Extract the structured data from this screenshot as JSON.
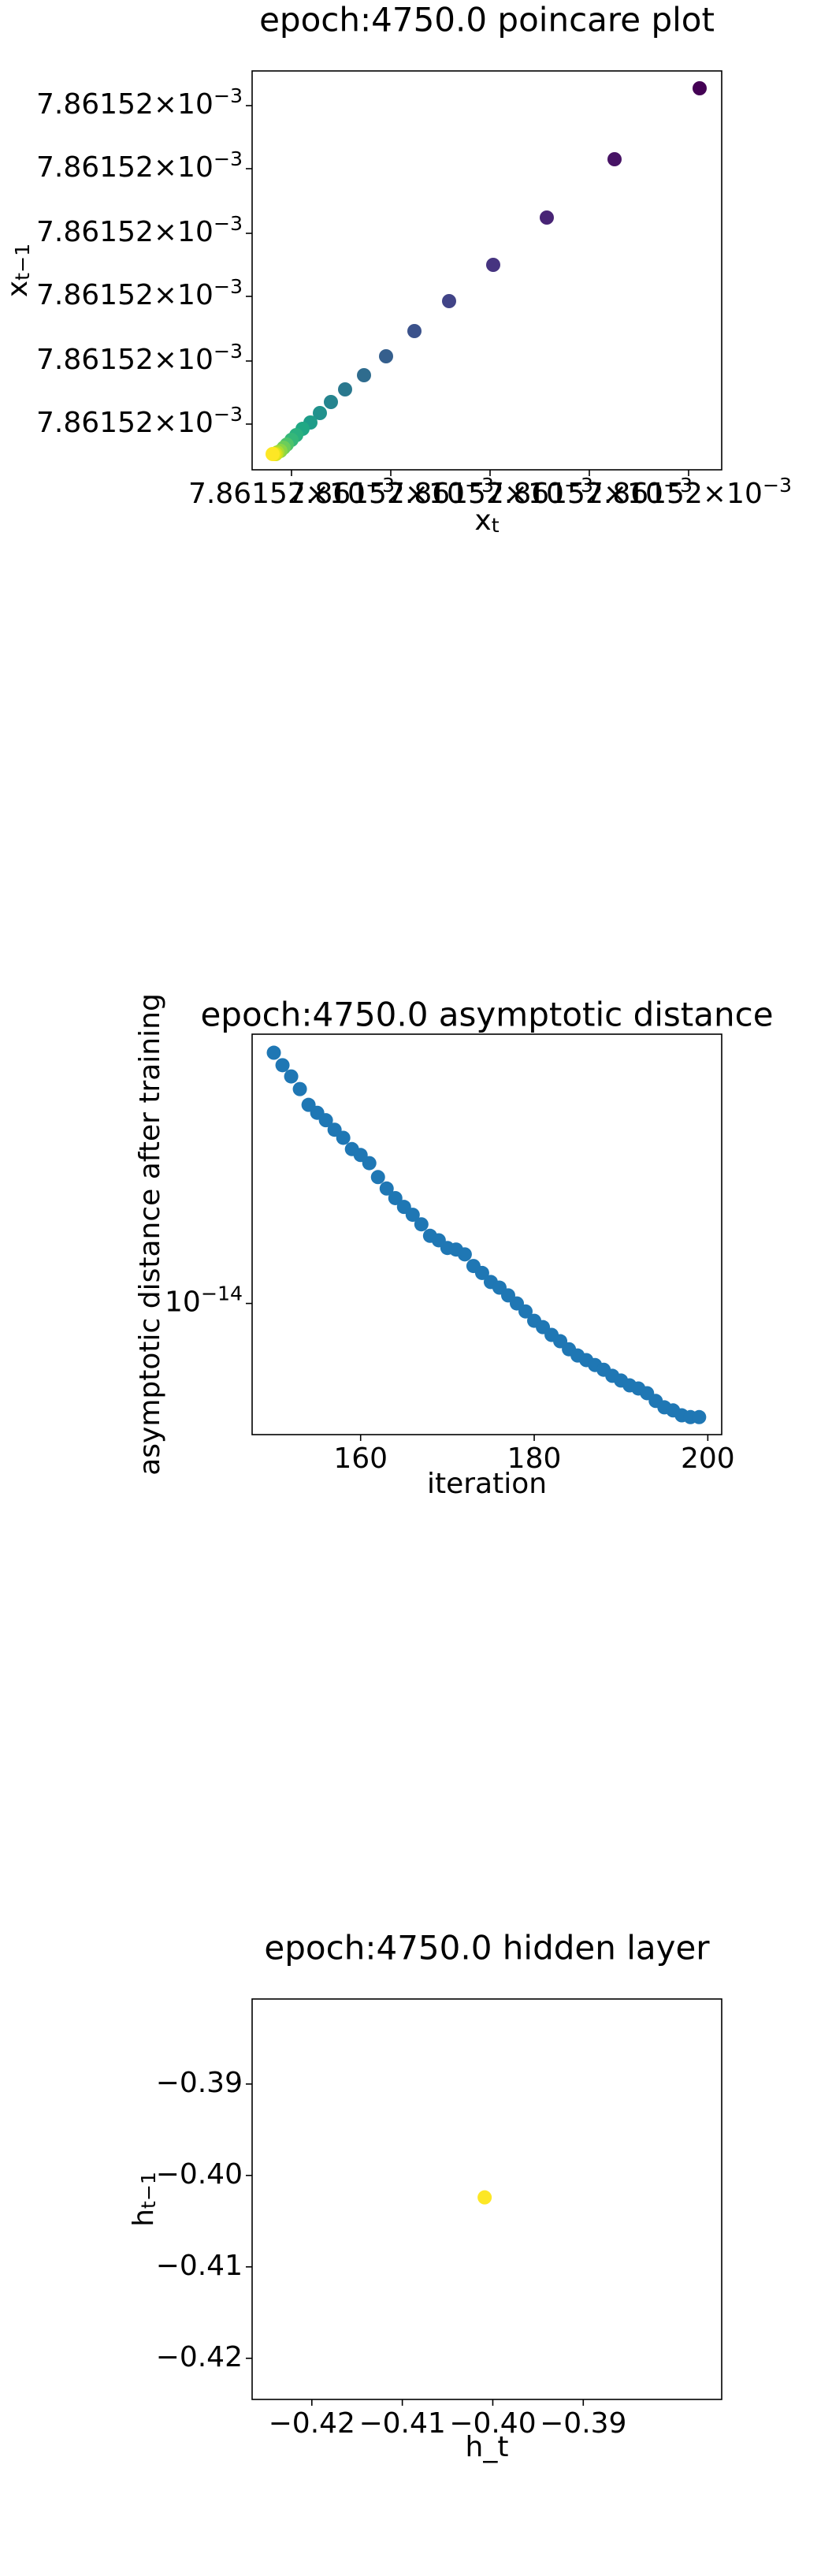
{
  "chart_data": [
    {
      "type": "scatter",
      "title": "epoch:4750.0 poincare plot",
      "xlabel": "x",
      "xlabel_sub": "t",
      "ylabel": "x",
      "ylabel_sub": "t−1",
      "x": [
        0.00786152000284,
        0.0078615200023,
        0.00786152000187,
        0.00786152000153,
        0.00786152000125,
        0.00786152000103,
        0.00786152000085,
        0.00786152000071,
        0.00786152000059,
        0.0078615200005,
        0.00786152000043,
        0.00786152000037,
        0.00786152000032,
        0.00786152000028,
        0.00786152000025,
        0.00786152000022,
        0.0078615200002,
        0.00786152000018,
        0.00786152000016,
        0.00786152000015,
        0.00786152000014,
        0.00786152000013
      ],
      "values": [
        0.00786152000242,
        0.00786152000197,
        0.0078615200016,
        0.0078615200013,
        0.00786152000107,
        0.00786152000088,
        0.00786152000072,
        0.0078615200006,
        0.00786152000051,
        0.00786152000043,
        0.00786152000036,
        0.0078615200003,
        0.00786152000026,
        0.00786152000022,
        0.00786152000019,
        0.00786152000016,
        0.00786152000014,
        0.00786152000012,
        0.00786152000011,
        0.0078615200001,
        0.0078615200001,
        0.0078615200001
      ],
      "colors": [
        "#440154",
        "#471365",
        "#482475",
        "#463480",
        "#414487",
        "#3b528b",
        "#355f8d",
        "#2f6c8e",
        "#2a788e",
        "#25848e",
        "#21918c",
        "#1e9c89",
        "#20a884",
        "#2ab07f",
        "#35b779",
        "#4ec36b",
        "#6ccd5a",
        "#8bd646",
        "#addc30",
        "#cde11d",
        "#e5e419",
        "#fde725"
      ],
      "xlim": [
        0.00786152,
        0.00786152000298
      ],
      "ylim": [
        0.00786152,
        0.00786152000253
      ],
      "xticks": [
        {
          "value": 0.00786152000025,
          "label": "7.86152×10",
          "sup": "−3"
        },
        {
          "value": 0.00786152000088,
          "label": "7.86152×10",
          "sup": "−3"
        },
        {
          "value": 0.00786152000151,
          "label": "7.86152×10",
          "sup": "−3"
        },
        {
          "value": 0.00786152000214,
          "label": "7.86152×10",
          "sup": "−3"
        },
        {
          "value": 0.00786152000277,
          "label": "7.86152×10",
          "sup": "−3"
        }
      ],
      "yticks": [
        {
          "value": 0.00786152000231,
          "label": "7.86152×10",
          "sup": "−3"
        },
        {
          "value": 0.00786152000191,
          "label": "7.86152×10",
          "sup": "−3"
        },
        {
          "value": 0.0078615200015,
          "label": "7.86152×10",
          "sup": "−3"
        },
        {
          "value": 0.0078615200011,
          "label": "7.86152×10",
          "sup": "−3"
        },
        {
          "value": 0.00786152000069,
          "label": "7.86152×10",
          "sup": "−3"
        },
        {
          "value": 0.00786152000029,
          "label": "7.86152×10",
          "sup": "−3"
        }
      ]
    },
    {
      "type": "scatter",
      "title": "epoch:4750.0 asymptotic distance",
      "xlabel": "iteration",
      "ylabel": "asymptotic distance after training",
      "x": [
        150,
        151,
        152,
        153,
        154,
        155,
        156,
        157,
        158,
        159,
        160,
        161,
        162,
        163,
        164,
        165,
        166,
        167,
        168,
        169,
        170,
        171,
        172,
        173,
        174,
        175,
        176,
        177,
        178,
        179,
        180,
        181,
        182,
        183,
        184,
        185,
        186,
        187,
        188,
        189,
        190,
        191,
        192,
        193,
        194,
        195,
        196,
        197,
        198,
        199
      ],
      "values": [
        3.39e-14,
        3.19e-14,
        3.02e-14,
        2.84e-14,
        2.63e-14,
        2.53e-14,
        2.44e-14,
        2.33e-14,
        2.24e-14,
        2.12e-14,
        2.06e-14,
        1.98e-14,
        1.85e-14,
        1.75e-14,
        1.67e-14,
        1.6e-14,
        1.54e-14,
        1.47e-14,
        1.39e-14,
        1.36e-14,
        1.31e-14,
        1.3e-14,
        1.27e-14,
        1.2e-14,
        1.16e-14,
        1.11e-14,
        1.08e-14,
        1.04e-14,
        1e-14,
        9.62e-15,
        9.19e-15,
        8.91e-15,
        8.58e-15,
        8.32e-15,
        8e-15,
        7.76e-15,
        7.59e-15,
        7.41e-15,
        7.24e-15,
        7.03e-15,
        6.87e-15,
        6.71e-15,
        6.61e-15,
        6.46e-15,
        6.22e-15,
        6.03e-15,
        5.94e-15,
        5.8e-15,
        5.75e-15,
        5.75e-15
      ],
      "color": "#1f77b4",
      "ylog": true,
      "xlim": [
        147.5,
        201.6
      ],
      "ylim": [
        5.28e-15,
        3.71e-14
      ],
      "xticks": [
        160,
        180,
        200
      ],
      "yticks": [
        {
          "value": 1e-14,
          "label": "10",
          "sup": "−14"
        }
      ]
    },
    {
      "type": "scatter",
      "title": "epoch:4750.0 hidden layer",
      "xlabel": "h_t",
      "ylabel": "h",
      "ylabel_sub": "t−1",
      "x": [
        -0.4009
      ],
      "values": [
        -0.4024
      ],
      "color": "#fde725",
      "xlim": [
        -0.4266,
        -0.3747
      ],
      "ylim": [
        -0.4245,
        -0.3807
      ],
      "xticks": [
        {
          "value": -0.42,
          "label": "−0.42"
        },
        {
          "value": -0.41,
          "label": "−0.41"
        },
        {
          "value": -0.4,
          "label": "−0.40"
        },
        {
          "value": -0.39,
          "label": "−0.39"
        }
      ],
      "yticks": [
        {
          "value": -0.39,
          "label": "−0.39"
        },
        {
          "value": -0.4,
          "label": "−0.40"
        },
        {
          "value": -0.41,
          "label": "−0.41"
        },
        {
          "value": -0.42,
          "label": "−0.42"
        }
      ]
    }
  ]
}
